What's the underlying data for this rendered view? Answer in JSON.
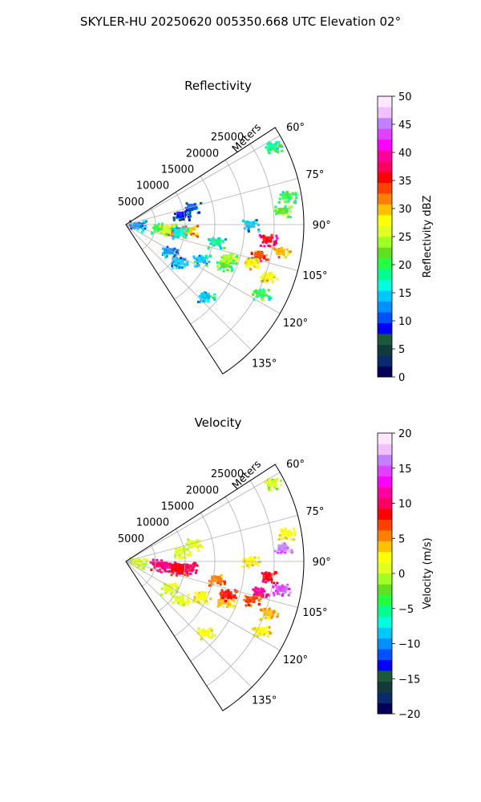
{
  "suptitle": "SKYLER-HU  20250620  005350.668 UTC Elevation 02°",
  "chart_data": [
    {
      "type": "heatmap",
      "projection": "polar-sector",
      "title": "Reflectivity",
      "range_label": "Meters",
      "range_ticks": [
        "5000",
        "10000",
        "15000",
        "20000",
        "25000"
      ],
      "range_values": [
        5000,
        10000,
        15000,
        20000,
        25000
      ],
      "range_max": 30000,
      "azimuth_ticks": [
        "60°",
        "75°",
        "90°",
        "105°",
        "120°",
        "135°"
      ],
      "azimuth_values": [
        60,
        75,
        90,
        105,
        120,
        135
      ],
      "azimuth_range": [
        57,
        147
      ],
      "grid": true,
      "colorbar": {
        "label": "Reflectivity dBZ",
        "ticks": [
          "0",
          "5",
          "10",
          "15",
          "20",
          "25",
          "30",
          "35",
          "40",
          "45",
          "50"
        ],
        "vmin": 0,
        "vmax": 50,
        "colors": [
          "#04005a",
          "#0a2a6e",
          "#123a3a",
          "#1a5a3a",
          "#0000ff",
          "#0050ff",
          "#0090ff",
          "#00c8ff",
          "#00ffe0",
          "#00ff90",
          "#20ff40",
          "#60e020",
          "#a0ff20",
          "#e0ff20",
          "#ffff00",
          "#ffc000",
          "#ff8000",
          "#ff4000",
          "#ff0000",
          "#ff0060",
          "#ff00a0",
          "#ff00ff",
          "#e040ff",
          "#c080ff",
          "#f0c0ff",
          "#ffe8ff"
        ]
      },
      "echoes": [
        {
          "az": 95,
          "r": 5500,
          "level": 20
        },
        {
          "az": 96,
          "r": 7000,
          "level": 25
        },
        {
          "az": 97,
          "r": 8500,
          "level": 33
        },
        {
          "az": 95.5,
          "r": 10500,
          "level": 30
        },
        {
          "az": 98,
          "r": 9000,
          "level": 16
        },
        {
          "az": 101,
          "r": 15500,
          "level": 18
        },
        {
          "az": 96,
          "r": 24000,
          "level": 36
        },
        {
          "az": 100,
          "r": 26500,
          "level": 30
        },
        {
          "az": 103,
          "r": 23000,
          "level": 33
        },
        {
          "az": 107,
          "r": 22000,
          "level": 28
        },
        {
          "az": 112,
          "r": 18000,
          "level": 22
        },
        {
          "az": 115,
          "r": 14000,
          "level": 15
        },
        {
          "az": 122,
          "r": 8500,
          "level": 12
        },
        {
          "az": 125,
          "r": 11000,
          "level": 14
        },
        {
          "az": 132,
          "r": 18000,
          "level": 15
        },
        {
          "az": 85,
          "r": 26500,
          "level": 22
        },
        {
          "az": 80,
          "r": 27500,
          "level": 20
        },
        {
          "az": 90,
          "r": 21000,
          "level": 15
        },
        {
          "az": 62,
          "r": 28000,
          "level": 18
        },
        {
          "az": 108,
          "r": 18000,
          "level": 24
        },
        {
          "az": 110,
          "r": 25500,
          "level": 28
        },
        {
          "az": 117,
          "r": 25500,
          "level": 20
        },
        {
          "az": 80,
          "r": 9500,
          "level": 8
        },
        {
          "az": 75,
          "r": 11500,
          "level": 10
        },
        {
          "az": 95,
          "r": 2000,
          "level": 12
        }
      ]
    },
    {
      "type": "heatmap",
      "projection": "polar-sector",
      "title": "Velocity",
      "range_label": "Meters",
      "range_ticks": [
        "5000",
        "10000",
        "15000",
        "20000",
        "25000"
      ],
      "range_values": [
        5000,
        10000,
        15000,
        20000,
        25000
      ],
      "range_max": 30000,
      "azimuth_ticks": [
        "60°",
        "75°",
        "90°",
        "105°",
        "120°",
        "135°"
      ],
      "azimuth_values": [
        60,
        75,
        90,
        105,
        120,
        135
      ],
      "azimuth_range": [
        57,
        147
      ],
      "grid": true,
      "colorbar": {
        "label": "Velocity (m/s)",
        "ticks": [
          "−20",
          "−15",
          "−10",
          "−5",
          "0",
          "5",
          "10",
          "15",
          "20"
        ],
        "vmin": -20,
        "vmax": 20,
        "colors": [
          "#04005a",
          "#0a2a6e",
          "#123a3a",
          "#1a5a3a",
          "#0000ff",
          "#0050ff",
          "#0090ff",
          "#00c8ff",
          "#00ffe0",
          "#00ff90",
          "#20ff40",
          "#60e020",
          "#a0ff20",
          "#e0ff20",
          "#ffff00",
          "#ffc000",
          "#ff8000",
          "#ff4000",
          "#ff0000",
          "#ff0060",
          "#ff00a0",
          "#ff00ff",
          "#e040ff",
          "#c080ff",
          "#f0c0ff",
          "#ffe8ff"
        ]
      },
      "echoes": [
        {
          "az": 95,
          "r": 5500,
          "level": 10
        },
        {
          "az": 96,
          "r": 7000,
          "level": 11
        },
        {
          "az": 97,
          "r": 8500,
          "level": 9
        },
        {
          "az": 95.5,
          "r": 10500,
          "level": 10
        },
        {
          "az": 98,
          "r": 9000,
          "level": 9
        },
        {
          "az": 101,
          "r": 15500,
          "level": 6
        },
        {
          "az": 96,
          "r": 24000,
          "level": 9
        },
        {
          "az": 100,
          "r": 26500,
          "level": 15
        },
        {
          "az": 103,
          "r": 23000,
          "level": 11
        },
        {
          "az": 107,
          "r": 22000,
          "level": 7
        },
        {
          "az": 112,
          "r": 18000,
          "level": 4
        },
        {
          "az": 115,
          "r": 14000,
          "level": 2
        },
        {
          "az": 122,
          "r": 8500,
          "level": 1
        },
        {
          "az": 125,
          "r": 11000,
          "level": 1
        },
        {
          "az": 132,
          "r": 18000,
          "level": 2
        },
        {
          "az": 85,
          "r": 26500,
          "level": 16
        },
        {
          "az": 80,
          "r": 27500,
          "level": 2
        },
        {
          "az": 90,
          "r": 21000,
          "level": 3
        },
        {
          "az": 62,
          "r": 28000,
          "level": 0
        },
        {
          "az": 108,
          "r": 18000,
          "level": 8
        },
        {
          "az": 110,
          "r": 25500,
          "level": 4
        },
        {
          "az": 117,
          "r": 25500,
          "level": 3
        },
        {
          "az": 80,
          "r": 9500,
          "level": 1
        },
        {
          "az": 75,
          "r": 11500,
          "level": 1
        },
        {
          "az": 95,
          "r": 2000,
          "level": 0
        }
      ]
    }
  ]
}
